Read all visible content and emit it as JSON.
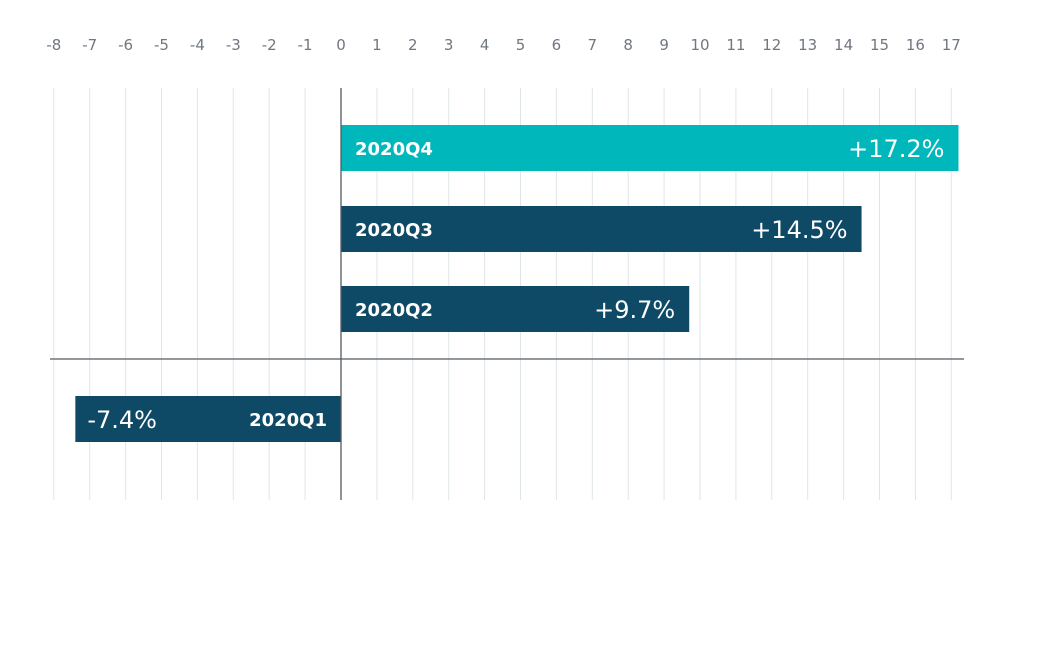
{
  "chart_data": {
    "type": "bar",
    "orientation": "horizontal",
    "categories": [
      "2020Q4",
      "2020Q3",
      "2020Q2",
      "2020Q1"
    ],
    "values": [
      17.2,
      14.5,
      9.7,
      -7.4
    ],
    "value_labels": [
      "+17.2%",
      "+14.5%",
      "+9.7%",
      "-7.4%"
    ],
    "xlim": [
      -8,
      17
    ],
    "xticks": [
      -8,
      -7,
      -6,
      -5,
      -4,
      -3,
      -2,
      -1,
      0,
      1,
      2,
      3,
      4,
      5,
      6,
      7,
      8,
      9,
      10,
      11,
      12,
      13,
      14,
      15,
      16,
      17
    ],
    "tick_position": "top",
    "grid": true,
    "title": "",
    "xlabel": "",
    "ylabel": ""
  },
  "colors": {
    "highlight_bar": "#00b8bc",
    "bar": "#0e4a66",
    "grid": "#dfe6ea",
    "axis": "#555b60",
    "tick_text": "#707780",
    "label_text": "#ffffff"
  }
}
